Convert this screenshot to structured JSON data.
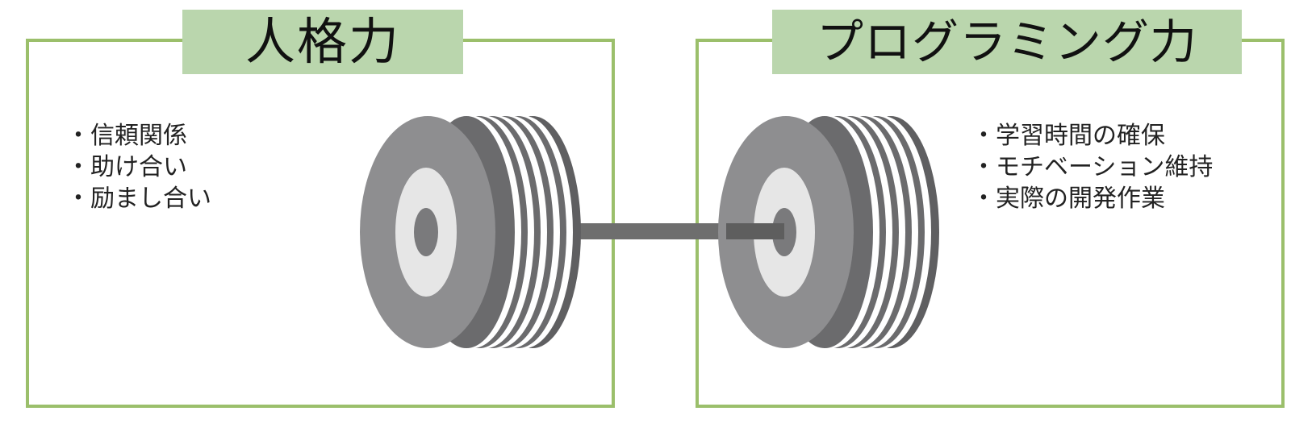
{
  "left": {
    "title": "人格力",
    "items": [
      "信頼関係",
      "助け合い",
      "励まし合い"
    ]
  },
  "right": {
    "title": "プログラミング力",
    "items": [
      "学習時間の確保",
      "モチベーション維持",
      "実際の開発作業"
    ]
  },
  "colors": {
    "frame": "#9bbf6b",
    "title_bg": "#bad6ad",
    "plate_face": "#8e8e90",
    "plate_rim": "#6b6b6d",
    "plate_ring": "#e6e6e6",
    "plate_hub": "#7a7a7c",
    "bar": "#6e6e6e"
  },
  "icons": {
    "barbell": "barbell-icon"
  }
}
